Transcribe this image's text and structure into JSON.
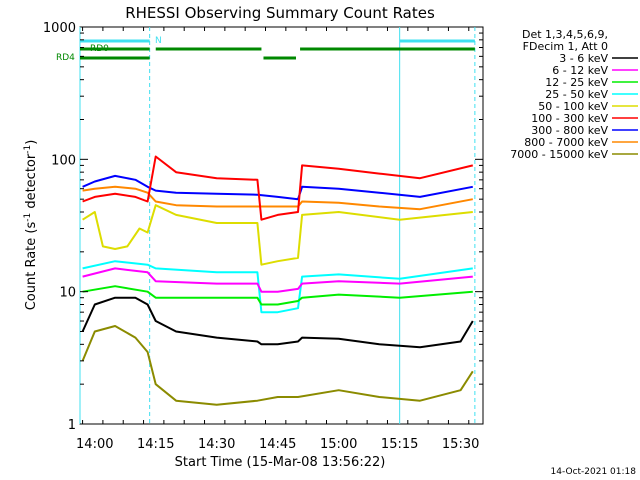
{
  "chart_data": {
    "type": "line",
    "title": "RHESSI Observing Summary Count Rates",
    "xlabel": "Start Time (15-Mar-08 13:56:22)",
    "ylabel_main": "Count Rate (s",
    "ylabel_exp1": "-1",
    "ylabel_mid": " detector",
    "ylabel_exp2": "-1",
    "ylabel_end": ")",
    "y_scale": "log",
    "ylim": [
      1,
      1000
    ],
    "xlim": [
      "13:56:22",
      "15:35:30"
    ],
    "x_ticks": [
      "14:00",
      "14:15",
      "14:30",
      "14:45",
      "15:00",
      "15:15",
      "15:30"
    ],
    "y_ticks": [
      "1",
      "10",
      "100",
      "1000"
    ],
    "timestamp": "14-Oct-2021 01:18",
    "legend_header": [
      "Det 1,3,4,5,6,9,",
      "FDecim 1, Att 0"
    ],
    "legend_position": "right",
    "flags": [
      {
        "label": "RD0",
        "color": "#40e0f0"
      },
      {
        "label": "N",
        "color": "#40e0f0"
      },
      {
        "label": "RD4",
        "color": "#008800"
      }
    ],
    "flag_segments": {
      "cyan_top": [
        [
          "13:56:22",
          "14:13:30"
        ],
        [
          "15:15:00",
          "15:33:30"
        ]
      ],
      "green_upper": [
        [
          "13:56:22",
          "14:13:30"
        ],
        [
          "14:15:00",
          "14:41:00"
        ],
        [
          "14:50:30",
          "15:33:30"
        ]
      ],
      "green_lower": [
        [
          "13:56:22",
          "14:13:30"
        ],
        [
          "14:41:30",
          "14:49:30"
        ]
      ]
    },
    "night_markers": [
      "13:56:22",
      "14:13:30",
      "15:15:00",
      "15:33:30"
    ],
    "series": [
      {
        "name": "3 - 6 keV",
        "color": "#000000",
        "times": [
          "13:57",
          "14:00",
          "14:05",
          "14:10",
          "14:13",
          "14:15",
          "14:20",
          "14:30",
          "14:40",
          "14:41",
          "14:45",
          "14:50",
          "14:51",
          "15:00",
          "15:10",
          "15:20",
          "15:30",
          "15:33"
        ],
        "values": [
          5,
          8,
          9,
          9,
          8,
          6,
          5,
          4.5,
          4.2,
          4,
          4,
          4.2,
          4.5,
          4.4,
          4,
          3.8,
          4.2,
          6
        ]
      },
      {
        "name": "6 - 12 keV",
        "color": "#ff00ff",
        "times": [
          "13:57",
          "14:05",
          "14:13",
          "14:15",
          "14:30",
          "14:40",
          "14:41",
          "14:45",
          "14:50",
          "14:51",
          "15:00",
          "15:15",
          "15:33"
        ],
        "values": [
          13,
          15,
          14,
          12,
          11.5,
          11.5,
          10,
          10,
          10.5,
          11.5,
          12,
          11.5,
          13
        ]
      },
      {
        "name": "12 - 25 keV",
        "color": "#00ee00",
        "times": [
          "13:57",
          "14:05",
          "14:13",
          "14:15",
          "14:30",
          "14:40",
          "14:41",
          "14:45",
          "14:50",
          "14:51",
          "15:00",
          "15:15",
          "15:33"
        ],
        "values": [
          10,
          11,
          10,
          9,
          9,
          9,
          8,
          8,
          8.5,
          9,
          9.5,
          9,
          10
        ]
      },
      {
        "name": "25 - 50 keV",
        "color": "#00ffff",
        "times": [
          "13:57",
          "14:05",
          "14:13",
          "14:15",
          "14:30",
          "14:40",
          "14:41",
          "14:45",
          "14:50",
          "14:51",
          "15:00",
          "15:15",
          "15:33"
        ],
        "values": [
          15,
          17,
          16,
          15,
          14,
          14,
          7,
          7,
          7.5,
          13,
          13.5,
          12.5,
          15
        ]
      },
      {
        "name": "50 - 100 keV",
        "color": "#dddd00",
        "times": [
          "13:57",
          "14:00",
          "14:02",
          "14:05",
          "14:08",
          "14:11",
          "14:13",
          "14:15",
          "14:20",
          "14:30",
          "14:40",
          "14:41",
          "14:45",
          "14:50",
          "14:51",
          "15:00",
          "15:15",
          "15:33"
        ],
        "values": [
          35,
          40,
          22,
          21,
          22,
          30,
          28,
          45,
          38,
          33,
          33,
          16,
          17,
          18,
          38,
          40,
          35,
          40
        ]
      },
      {
        "name": "100 - 300 keV",
        "color": "#ff0000",
        "times": [
          "13:57",
          "14:00",
          "14:05",
          "14:10",
          "14:13",
          "14:15",
          "14:20",
          "14:30",
          "14:40",
          "14:41",
          "14:45",
          "14:50",
          "14:51",
          "15:00",
          "15:10",
          "15:20",
          "15:33"
        ],
        "values": [
          48,
          52,
          55,
          52,
          48,
          105,
          80,
          72,
          70,
          35,
          38,
          40,
          90,
          85,
          78,
          72,
          90
        ]
      },
      {
        "name": "300 - 800 keV",
        "color": "#0000ff",
        "times": [
          "13:57",
          "14:00",
          "14:05",
          "14:10",
          "14:13",
          "14:15",
          "14:20",
          "14:30",
          "14:40",
          "14:45",
          "14:50",
          "14:51",
          "15:00",
          "15:10",
          "15:20",
          "15:33"
        ],
        "values": [
          62,
          68,
          75,
          70,
          62,
          58,
          56,
          55,
          54,
          52,
          50,
          62,
          60,
          56,
          52,
          62
        ]
      },
      {
        "name": "800 - 7000 keV",
        "color": "#ff8800",
        "times": [
          "13:57",
          "14:00",
          "14:05",
          "14:10",
          "14:13",
          "14:15",
          "14:20",
          "14:30",
          "14:40",
          "14:45",
          "14:50",
          "14:51",
          "15:00",
          "15:10",
          "15:20",
          "15:33"
        ],
        "values": [
          58,
          60,
          62,
          60,
          56,
          48,
          45,
          44,
          44,
          44,
          44,
          48,
          47,
          44,
          42,
          50
        ]
      },
      {
        "name": "7000 - 15000 keV",
        "color": "#8b8b00",
        "times": [
          "13:57",
          "14:00",
          "14:05",
          "14:10",
          "14:13",
          "14:15",
          "14:20",
          "14:30",
          "14:40",
          "14:45",
          "14:50",
          "15:00",
          "15:10",
          "15:20",
          "15:30",
          "15:33"
        ],
        "values": [
          3,
          5,
          5.5,
          4.5,
          3.5,
          2,
          1.5,
          1.4,
          1.5,
          1.6,
          1.6,
          1.8,
          1.6,
          1.5,
          1.8,
          2.5
        ]
      }
    ]
  }
}
